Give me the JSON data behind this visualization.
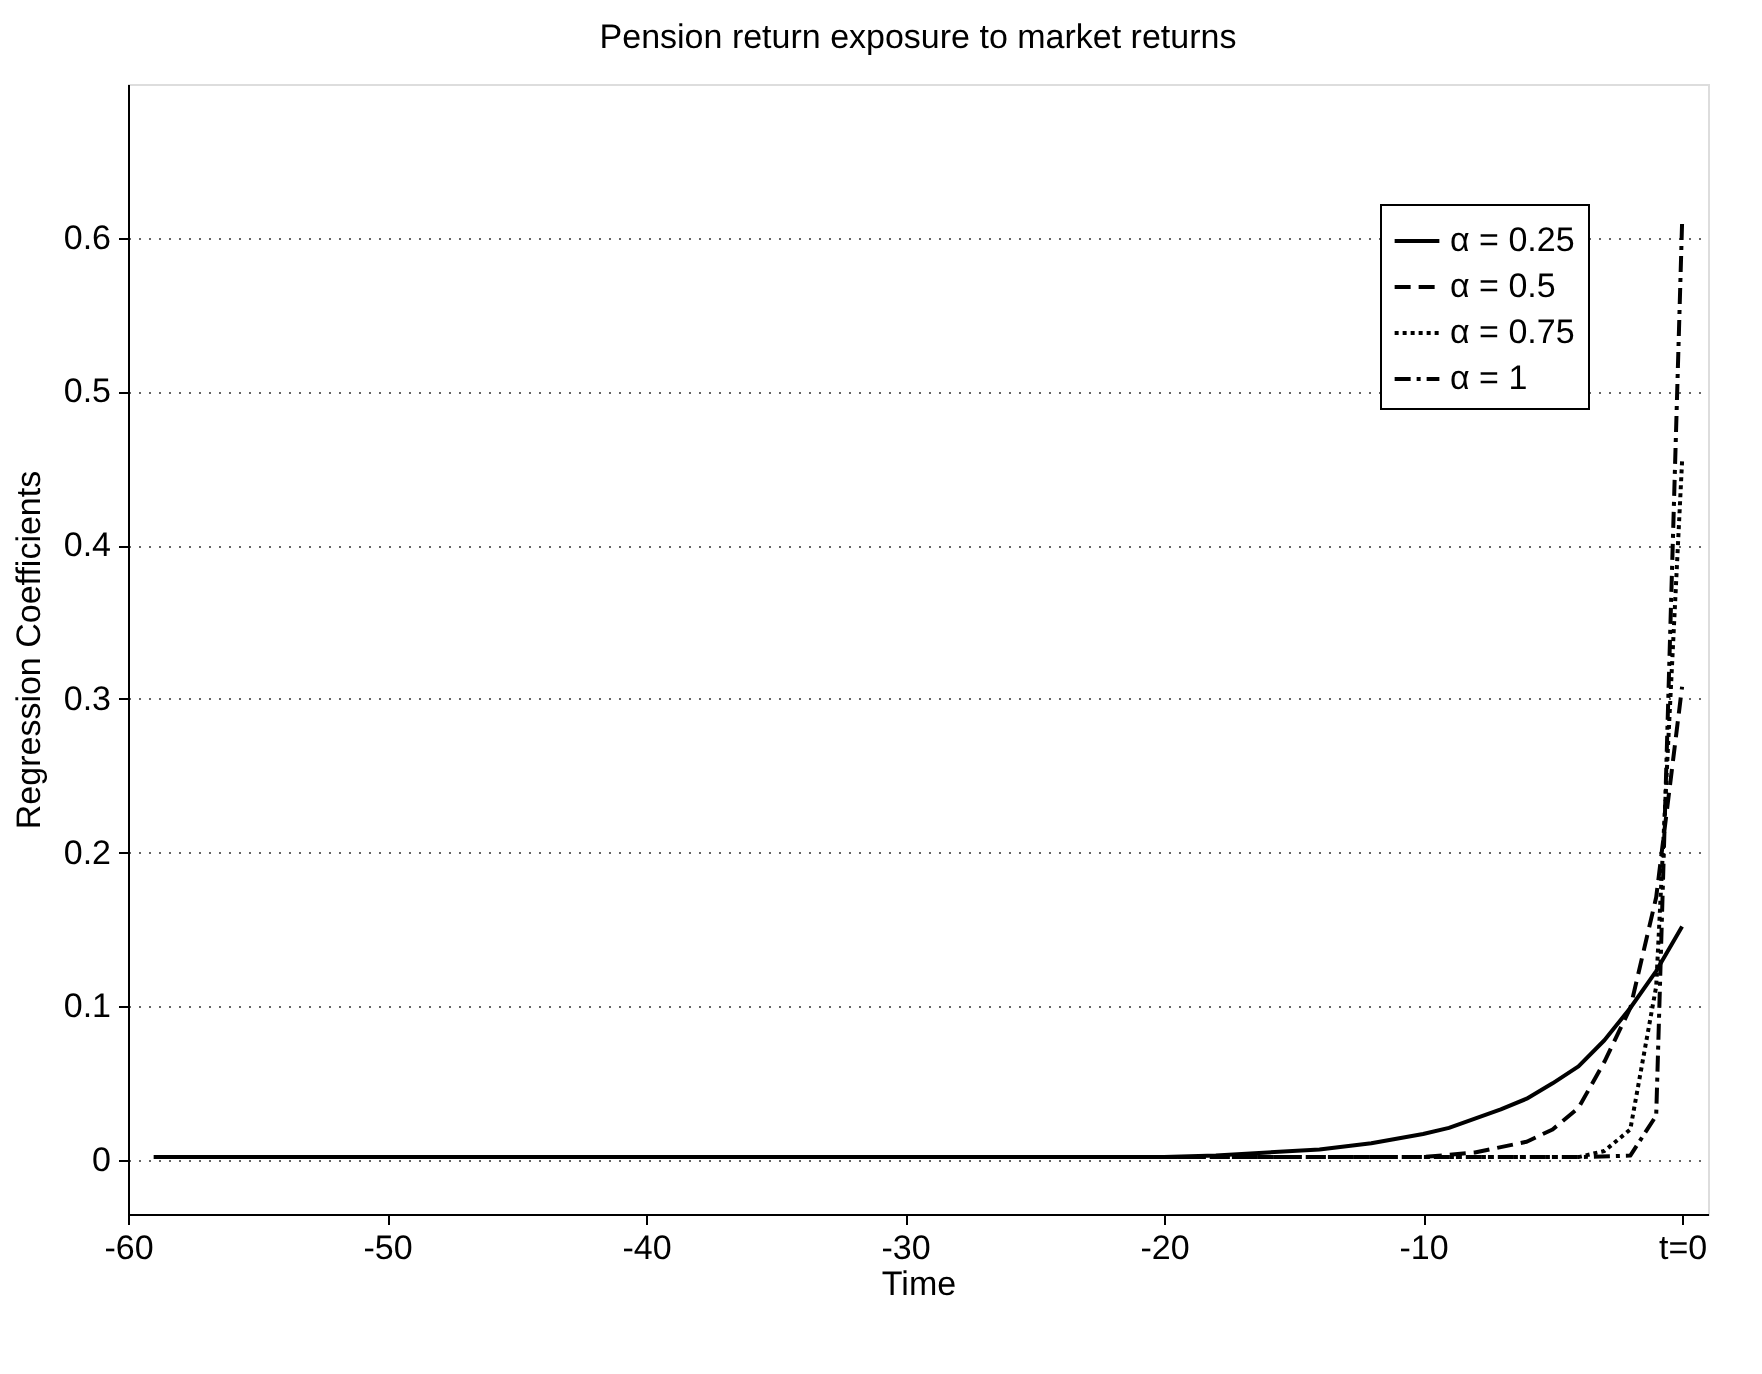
{
  "chart_data": {
    "type": "line",
    "title": "Pension return exposure to market returns",
    "xlabel": "Time",
    "ylabel": "Regression Coefficients",
    "xlim": [
      -60,
      1
    ],
    "xticks": [
      -60,
      -50,
      -40,
      -30,
      -20,
      -10,
      {
        "value": 0,
        "label": "t=0"
      }
    ],
    "ylim": [
      -0.035,
      0.7
    ],
    "yticks": [
      0,
      0.1,
      0.2,
      0.3,
      0.4,
      0.5,
      0.6
    ],
    "grid": "y",
    "legend": "top right",
    "marker": "none",
    "series": [
      {
        "name": "α = 0.25",
        "color": "#000000",
        "line_style": "solid",
        "x": [
          -59,
          -40,
          -20,
          -18,
          -16,
          -14,
          -12,
          -10,
          -9,
          -8,
          -7,
          -6,
          -5,
          -4,
          -3,
          -2,
          -1,
          0
        ],
        "values": [
          0.002,
          0.002,
          0.002,
          0.003,
          0.005,
          0.007,
          0.011,
          0.017,
          0.021,
          0.027,
          0.033,
          0.04,
          0.05,
          0.061,
          0.078,
          0.099,
          0.123,
          0.152
        ]
      },
      {
        "name": "α = 0.5",
        "color": "#000000",
        "line_style": "dashed",
        "x": [
          -59,
          -20,
          -10,
          -8,
          -6,
          -5,
          -4,
          -3,
          -2,
          -1,
          0
        ],
        "values": [
          0.002,
          0.002,
          0.002,
          0.005,
          0.012,
          0.02,
          0.034,
          0.064,
          0.099,
          0.171,
          0.308
        ]
      },
      {
        "name": "α = 0.75",
        "color": "#000000",
        "line_style": "dotted",
        "x": [
          -59,
          -20,
          -6,
          -4,
          -3,
          -2,
          -1,
          0
        ],
        "values": [
          0.002,
          0.002,
          0.002,
          0.002,
          0.006,
          0.02,
          0.113,
          0.455
        ]
      },
      {
        "name": "α = 1",
        "color": "#000000",
        "line_style": "dashdot",
        "x": [
          -59,
          -20,
          -4,
          -2,
          -1,
          0
        ],
        "values": [
          0.002,
          0.002,
          0.002,
          0.003,
          0.029,
          0.61
        ]
      }
    ]
  }
}
